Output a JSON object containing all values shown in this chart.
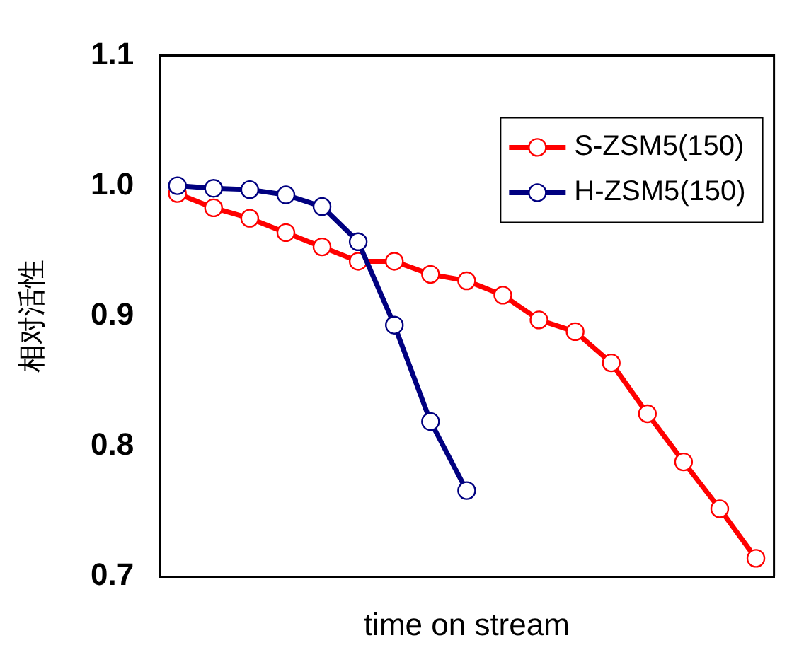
{
  "chart_data": {
    "type": "line",
    "xlabel": "time on stream",
    "ylabel": "相对活性",
    "categories": [
      null,
      null,
      null,
      null,
      null,
      null,
      null,
      null,
      null,
      null,
      null,
      null,
      null,
      null,
      null,
      null,
      null
    ],
    "series": [
      {
        "name": "S-ZSM5(150)",
        "color": "#ff0000",
        "values": [
          0.994,
          0.983,
          0.975,
          0.964,
          0.953,
          0.942,
          0.942,
          0.932,
          0.927,
          0.916,
          0.897,
          0.888,
          0.864,
          0.825,
          0.788,
          0.752,
          0.714
        ]
      },
      {
        "name": "H-ZSM5(150)",
        "color": "#000080",
        "values": [
          1.0,
          0.998,
          0.997,
          0.993,
          0.984,
          0.957,
          0.893,
          0.819,
          0.766,
          null,
          null,
          null,
          null,
          null,
          null,
          null,
          null
        ]
      }
    ],
    "ylim": [
      0.7,
      1.1
    ],
    "yticks": [
      0.7,
      0.8,
      0.9,
      {
        "value": 1,
        "label": "1.0"
      },
      1.1
    ],
    "tick_labels": "y",
    "grid": false,
    "legend": "top right",
    "marker": "circle",
    "line_style": "solid"
  }
}
